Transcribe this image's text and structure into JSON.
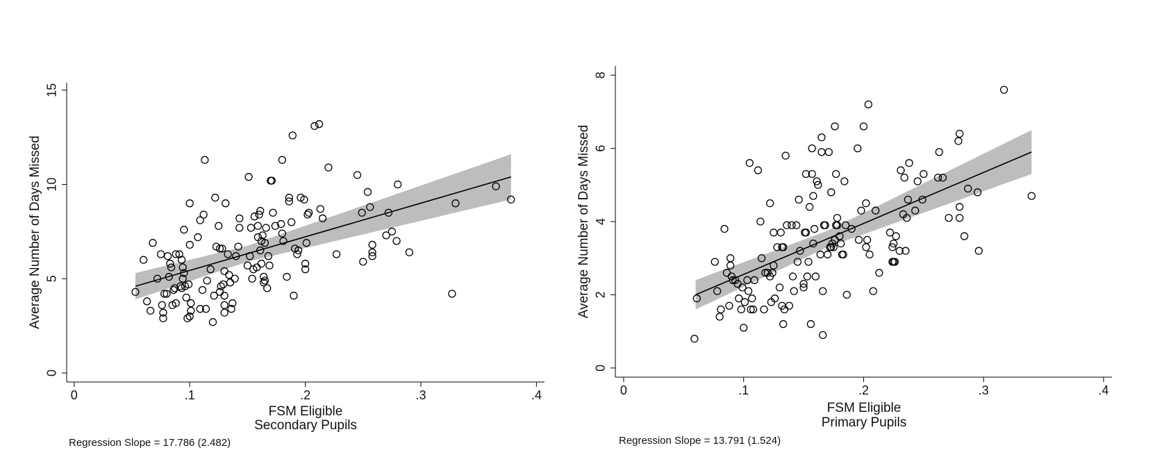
{
  "chart_data": [
    {
      "type": "scatter",
      "ylabel": "Average Number of Days Missed",
      "xlabel": [
        "FSM Eligible",
        "Secondary Pupils"
      ],
      "note": "Regression Slope = 17.786 (2.482)",
      "xlim": [
        -0.0065,
        0.407
      ],
      "ylim": [
        -0.48,
        15.4
      ],
      "xticks": [
        {
          "value": 0,
          "label": "0"
        },
        {
          "value": 0.1,
          "label": ".1"
        },
        {
          "value": 0.2,
          "label": ".2"
        },
        {
          "value": 0.3,
          "label": ".3"
        },
        {
          "value": 0.4,
          "label": ".4"
        }
      ],
      "yticks": [
        0,
        5,
        10,
        15
      ],
      "marker_color": "#000000",
      "band_color": "#bdbdbd",
      "line_color": "#000000",
      "fit": {
        "x": [
          0.053,
          0.15,
          0.378
        ],
        "y": [
          4.6,
          6.33,
          10.4
        ],
        "lower": [
          3.9,
          5.9,
          9.2
        ],
        "upper": [
          5.3,
          6.75,
          11.6
        ]
      },
      "x": [
        0.053,
        0.06,
        0.063,
        0.066,
        0.068,
        0.072,
        0.075,
        0.076,
        0.077,
        0.077,
        0.078,
        0.08,
        0.081,
        0.082,
        0.083,
        0.084,
        0.085,
        0.086,
        0.087,
        0.088,
        0.088,
        0.091,
        0.092,
        0.093,
        0.093,
        0.094,
        0.094,
        0.095,
        0.095,
        0.096,
        0.097,
        0.098,
        0.099,
        0.1,
        0.1,
        0.1,
        0.101,
        0.101,
        0.107,
        0.109,
        0.109,
        0.111,
        0.112,
        0.113,
        0.114,
        0.115,
        0.118,
        0.12,
        0.121,
        0.122,
        0.123,
        0.125,
        0.126,
        0.126,
        0.127,
        0.128,
        0.129,
        0.13,
        0.13,
        0.13,
        0.13,
        0.131,
        0.133,
        0.134,
        0.135,
        0.136,
        0.137,
        0.139,
        0.14,
        0.142,
        0.143,
        0.143,
        0.15,
        0.151,
        0.152,
        0.153,
        0.154,
        0.155,
        0.156,
        0.158,
        0.159,
        0.159,
        0.16,
        0.161,
        0.161,
        0.162,
        0.162,
        0.163,
        0.164,
        0.164,
        0.165,
        0.165,
        0.166,
        0.167,
        0.168,
        0.169,
        0.17,
        0.171,
        0.172,
        0.174,
        0.179,
        0.18,
        0.18,
        0.181,
        0.184,
        0.186,
        0.186,
        0.188,
        0.189,
        0.19,
        0.191,
        0.193,
        0.194,
        0.196,
        0.199,
        0.2,
        0.2,
        0.201,
        0.202,
        0.203,
        0.208,
        0.212,
        0.213,
        0.215,
        0.22,
        0.227,
        0.245,
        0.249,
        0.25,
        0.254,
        0.256,
        0.258,
        0.258,
        0.258,
        0.27,
        0.272,
        0.275,
        0.279,
        0.28,
        0.29,
        0.327,
        0.33,
        0.365,
        0.378
      ],
      "y": [
        4.3,
        6.0,
        3.8,
        3.3,
        6.9,
        5.0,
        6.3,
        3.6,
        3.2,
        2.9,
        4.2,
        4.2,
        6.2,
        5.1,
        5.8,
        5.6,
        3.6,
        4.4,
        4.5,
        3.7,
        6.3,
        6.3,
        4.6,
        4.5,
        6.0,
        5.0,
        5.6,
        5.3,
        7.6,
        4.6,
        4.0,
        2.9,
        4.7,
        3.0,
        6.8,
        9.0,
        3.3,
        3.7,
        7.2,
        3.4,
        8.1,
        4.4,
        8.4,
        11.3,
        3.4,
        4.9,
        5.5,
        2.7,
        4.1,
        9.3,
        6.7,
        7.8,
        4.3,
        6.6,
        4.6,
        6.6,
        4.7,
        3.6,
        4.1,
        3.2,
        5.4,
        9.0,
        6.3,
        5.2,
        4.8,
        3.4,
        3.7,
        5.0,
        6.2,
        6.7,
        7.7,
        8.2,
        5.7,
        10.4,
        6.2,
        7.7,
        5.0,
        5.5,
        8.3,
        5.6,
        7.8,
        7.2,
        8.4,
        8.6,
        6.5,
        7.0,
        5.8,
        7.3,
        5.1,
        4.8,
        4.9,
        6.9,
        7.7,
        4.5,
        6.2,
        5.7,
        10.2,
        10.2,
        8.5,
        7.8,
        7.9,
        7.4,
        11.3,
        7.0,
        5.1,
        9.3,
        9.1,
        8.0,
        12.6,
        4.1,
        6.6,
        6.3,
        6.5,
        9.3,
        9.2,
        5.5,
        5.8,
        6.9,
        8.4,
        8.5,
        13.1,
        13.2,
        8.7,
        8.2,
        10.9,
        6.3,
        10.5,
        8.5,
        5.9,
        9.6,
        8.8,
        6.8,
        6.2,
        6.4,
        7.3,
        8.5,
        7.5,
        7.0,
        10.0,
        6.4,
        4.2,
        9.0,
        9.9,
        9.2
      ]
    },
    {
      "type": "scatter",
      "ylabel": "Average Number of Days Missed",
      "xlabel": [
        "FSM Eligible",
        "Primary Pupils"
      ],
      "note": "Regression Slope = 13.791 (1.524)",
      "xlim": [
        -0.0069,
        0.407
      ],
      "ylim": [
        -0.25,
        8.25
      ],
      "xticks": [
        {
          "value": 0,
          "label": "0"
        },
        {
          "value": 0.1,
          "label": ".1"
        },
        {
          "value": 0.2,
          "label": ".2"
        },
        {
          "value": 0.3,
          "label": ".3"
        },
        {
          "value": 0.4,
          "label": ".4"
        }
      ],
      "yticks": [
        0,
        2,
        4,
        6,
        8
      ],
      "marker_color": "#000000",
      "band_color": "#bdbdbd",
      "line_color": "#000000",
      "fit": {
        "x": [
          0.06,
          0.17,
          0.34
        ],
        "y": [
          2.0,
          3.53,
          5.9
        ],
        "lower": [
          1.6,
          3.3,
          5.3
        ],
        "upper": [
          2.4,
          3.75,
          6.5
        ]
      },
      "x": [
        0.059,
        0.061,
        0.076,
        0.078,
        0.08,
        0.081,
        0.084,
        0.086,
        0.088,
        0.089,
        0.089,
        0.09,
        0.091,
        0.093,
        0.095,
        0.096,
        0.098,
        0.099,
        0.1,
        0.101,
        0.103,
        0.104,
        0.105,
        0.106,
        0.107,
        0.108,
        0.109,
        0.112,
        0.114,
        0.115,
        0.117,
        0.118,
        0.12,
        0.122,
        0.122,
        0.123,
        0.124,
        0.125,
        0.125,
        0.126,
        0.128,
        0.13,
        0.131,
        0.132,
        0.132,
        0.133,
        0.133,
        0.134,
        0.135,
        0.136,
        0.138,
        0.14,
        0.141,
        0.142,
        0.144,
        0.145,
        0.146,
        0.147,
        0.15,
        0.15,
        0.151,
        0.152,
        0.152,
        0.153,
        0.154,
        0.155,
        0.156,
        0.157,
        0.157,
        0.158,
        0.158,
        0.159,
        0.16,
        0.161,
        0.162,
        0.164,
        0.165,
        0.165,
        0.166,
        0.166,
        0.167,
        0.168,
        0.17,
        0.171,
        0.172,
        0.173,
        0.173,
        0.174,
        0.175,
        0.176,
        0.176,
        0.177,
        0.177,
        0.178,
        0.178,
        0.18,
        0.181,
        0.182,
        0.183,
        0.184,
        0.185,
        0.186,
        0.19,
        0.195,
        0.196,
        0.198,
        0.2,
        0.202,
        0.202,
        0.203,
        0.204,
        0.205,
        0.208,
        0.21,
        0.213,
        0.222,
        0.224,
        0.224,
        0.225,
        0.225,
        0.226,
        0.227,
        0.23,
        0.231,
        0.233,
        0.234,
        0.235,
        0.236,
        0.237,
        0.238,
        0.243,
        0.245,
        0.249,
        0.25,
        0.262,
        0.263,
        0.266,
        0.271,
        0.279,
        0.28,
        0.28,
        0.28,
        0.284,
        0.287,
        0.295,
        0.296,
        0.317,
        0.34
      ],
      "y": [
        0.8,
        1.9,
        2.9,
        2.1,
        1.4,
        1.6,
        3.8,
        2.6,
        1.7,
        3.0,
        2.8,
        2.5,
        2.4,
        2.4,
        2.3,
        1.9,
        1.6,
        2.2,
        1.1,
        1.8,
        2.4,
        2.1,
        5.6,
        1.6,
        1.9,
        1.6,
        2.4,
        5.4,
        4.0,
        3.0,
        1.6,
        2.6,
        2.6,
        2.5,
        4.5,
        1.8,
        2.6,
        2.8,
        3.7,
        1.9,
        3.3,
        2.2,
        3.7,
        3.3,
        1.7,
        1.2,
        3.3,
        1.6,
        5.8,
        3.9,
        1.7,
        3.9,
        2.5,
        2.1,
        3.9,
        2.9,
        4.6,
        3.2,
        2.2,
        2.3,
        3.7,
        5.3,
        3.7,
        2.5,
        2.9,
        4.4,
        1.2,
        5.3,
        6.0,
        4.7,
        3.4,
        3.8,
        2.5,
        5.1,
        5.0,
        3.1,
        5.9,
        6.3,
        0.9,
        2.1,
        3.9,
        3.9,
        3.1,
        5.9,
        3.3,
        3.3,
        4.8,
        3.4,
        3.3,
        6.6,
        3.5,
        3.9,
        5.3,
        4.1,
        3.9,
        3.6,
        3.4,
        3.1,
        3.1,
        5.1,
        3.9,
        2.0,
        3.8,
        6.0,
        3.5,
        4.3,
        6.6,
        4.5,
        3.3,
        3.5,
        7.2,
        3.1,
        2.1,
        4.3,
        2.6,
        3.7,
        3.3,
        2.9,
        3.4,
        2.9,
        2.9,
        3.6,
        3.2,
        5.4,
        4.2,
        5.2,
        3.2,
        4.1,
        4.6,
        5.6,
        4.3,
        5.1,
        4.6,
        5.3,
        5.2,
        5.9,
        5.2,
        4.1,
        6.2,
        6.4,
        4.4,
        4.1,
        3.6,
        4.9,
        4.8,
        3.2,
        7.6,
        4.7
      ]
    }
  ]
}
